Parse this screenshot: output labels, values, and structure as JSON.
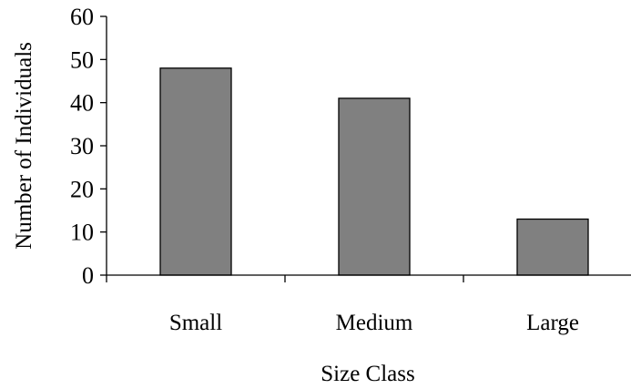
{
  "chart_data": {
    "type": "bar",
    "title": "",
    "xlabel": "Size Class",
    "ylabel": "Number of Individuals",
    "categories": [
      "Small",
      "Medium",
      "Large"
    ],
    "values": [
      48,
      41,
      13
    ],
    "ylim": [
      0,
      60
    ],
    "yticks": [
      0,
      10,
      20,
      30,
      40,
      50,
      60
    ],
    "ytick_labels": [
      "0",
      "10",
      "20",
      "30",
      "40",
      "50",
      "60"
    ],
    "grid": false,
    "legend": "none",
    "bar_color": "#808080",
    "bar_edge_color": "#000000"
  }
}
